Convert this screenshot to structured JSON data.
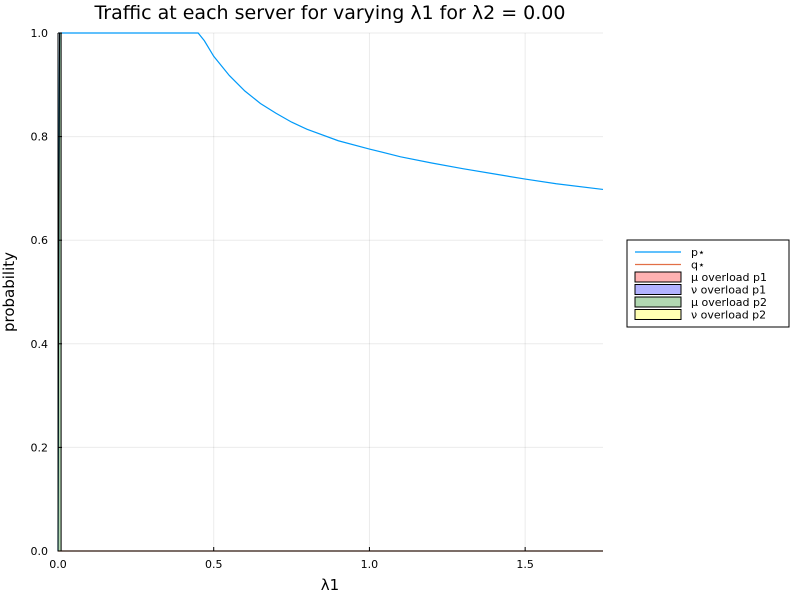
{
  "chart_data": {
    "type": "line",
    "title": "Traffic at each server for varying λ1 for λ2 = 0.00",
    "xlabel": "λ1",
    "ylabel": "probability",
    "xlim": [
      0,
      1.75
    ],
    "ylim": [
      0,
      1
    ],
    "x_ticks": [
      0,
      0.5,
      1.0,
      1.5
    ],
    "x_tick_labels": [
      "0.0",
      "0.5",
      "1.0",
      "1.5"
    ],
    "y_ticks": [
      0,
      0.2,
      0.4,
      0.6,
      0.8,
      1.0
    ],
    "y_tick_labels": [
      "0.0",
      "0.2",
      "0.4",
      "0.6",
      "0.8",
      "1.0"
    ],
    "grid": true,
    "legend_position": "outer-right",
    "series": [
      {
        "name": "p⋆",
        "kind": "line",
        "color": "#009af9",
        "points": [
          [
            0,
            0
          ],
          [
            0.002,
            0.5
          ],
          [
            0.005,
            1.0
          ],
          [
            0.45,
            1.0
          ],
          [
            0.47,
            0.985
          ],
          [
            0.5,
            0.955
          ],
          [
            0.55,
            0.918
          ],
          [
            0.6,
            0.888
          ],
          [
            0.65,
            0.864
          ],
          [
            0.7,
            0.845
          ],
          [
            0.75,
            0.828
          ],
          [
            0.8,
            0.814
          ],
          [
            0.9,
            0.792
          ],
          [
            1.0,
            0.776
          ],
          [
            1.1,
            0.761
          ],
          [
            1.2,
            0.749
          ],
          [
            1.3,
            0.738
          ],
          [
            1.4,
            0.728
          ],
          [
            1.5,
            0.718
          ],
          [
            1.6,
            0.709
          ],
          [
            1.75,
            0.698
          ]
        ]
      },
      {
        "name": "q⋆",
        "kind": "line",
        "color": "#e26f46",
        "points": [
          [
            0,
            0
          ],
          [
            1.75,
            0
          ]
        ]
      },
      {
        "name": "μ overload p1",
        "kind": "area",
        "color": "#ff0000",
        "points": [
          [
            0,
            0
          ],
          [
            1.75,
            0
          ]
        ]
      },
      {
        "name": "ν overload p1",
        "kind": "area",
        "color": "#0000ff",
        "points": [
          [
            0,
            0
          ],
          [
            1.75,
            0
          ]
        ]
      },
      {
        "name": "μ overload p2",
        "kind": "area",
        "color": "#008000",
        "points": [
          [
            0,
            0
          ],
          [
            0.002,
            0.5
          ],
          [
            0.005,
            1.0
          ],
          [
            0.01,
            1.0
          ],
          [
            0.01,
            0
          ],
          [
            1.75,
            0
          ]
        ]
      },
      {
        "name": "ν overload p2",
        "kind": "area",
        "color": "#ffff00",
        "points": [
          [
            0,
            0
          ],
          [
            1.75,
            0
          ]
        ]
      }
    ]
  }
}
